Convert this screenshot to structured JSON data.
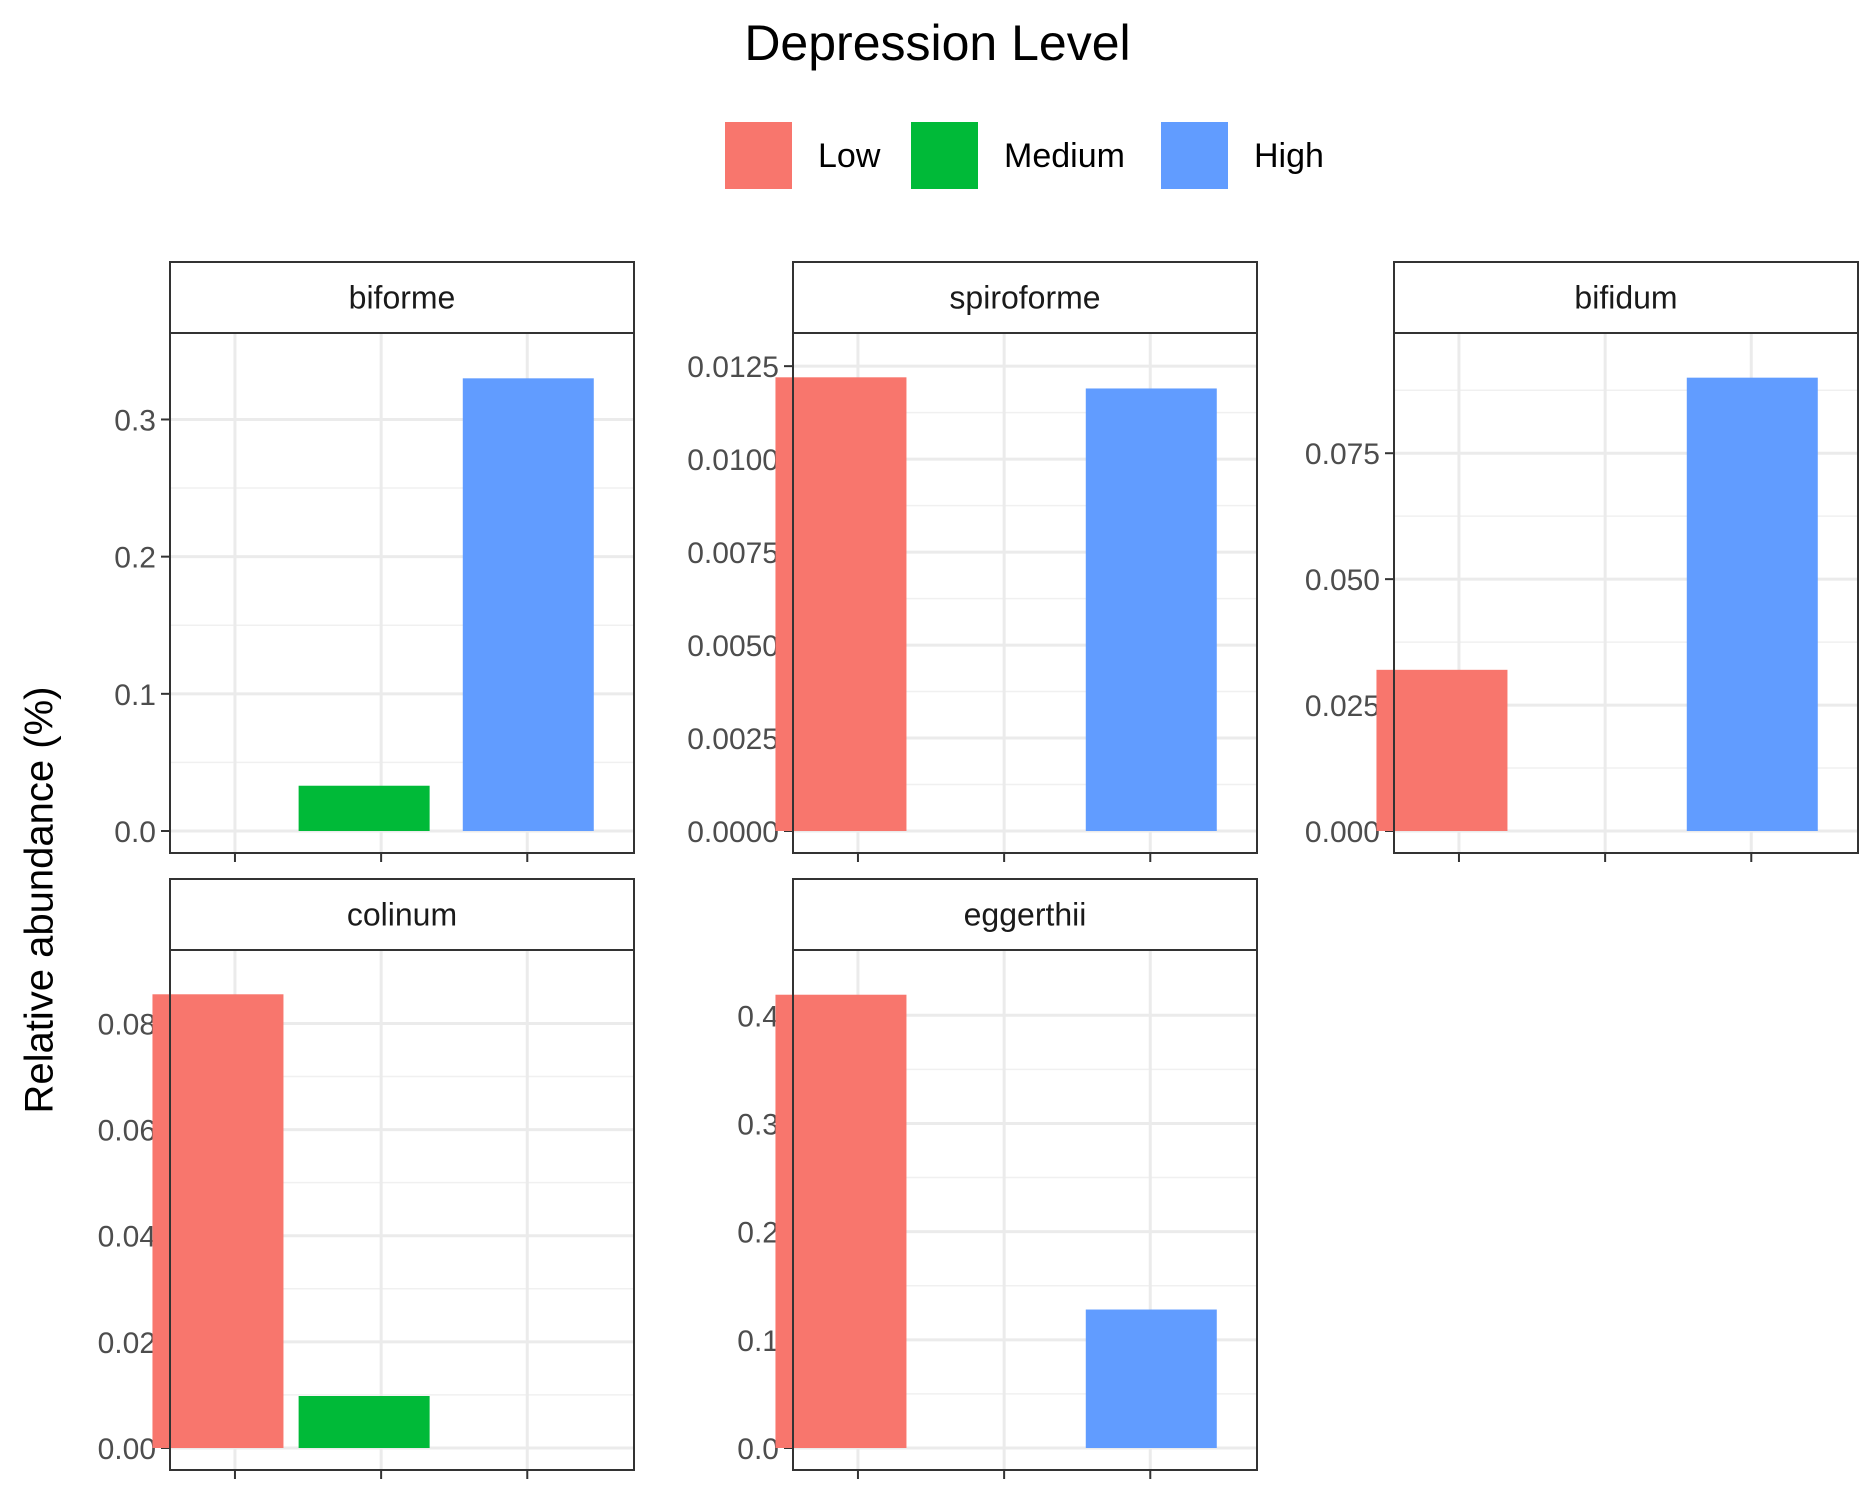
{
  "chart_data": {
    "type": "bar",
    "ylabel": "Relative abundance (%)",
    "legend": {
      "title": "Depression Level",
      "position": "top",
      "entries": [
        {
          "label": "Low",
          "color": "#F8766D"
        },
        {
          "label": "Medium",
          "color": "#00BA38"
        },
        {
          "label": "High",
          "color": "#619CFF"
        }
      ]
    },
    "categories": [
      "Low",
      "Medium",
      "High"
    ],
    "grid": true,
    "panels": [
      {
        "name": "biforme",
        "ylim": [
          0,
          0.347
        ],
        "ticks": [
          0.0,
          0.1,
          0.2,
          0.3
        ],
        "tick_labels": [
          "0.0",
          "0.1",
          "0.2",
          "0.3"
        ],
        "values": [
          null,
          0.033,
          0.33
        ]
      },
      {
        "name": "spiroforme",
        "ylim": [
          0,
          0.0128
        ],
        "ticks": [
          0,
          0.0025,
          0.005,
          0.0075,
          0.01,
          0.0125
        ],
        "tick_labels": [
          "0.0000",
          "0.0025",
          "0.0050",
          "0.0075",
          "0.0100",
          "0.0125"
        ],
        "values": [
          0.0122,
          null,
          0.0119
        ]
      },
      {
        "name": "bifidum",
        "ylim": [
          0,
          0.0945
        ],
        "ticks": [
          0,
          0.025,
          0.05,
          0.075
        ],
        "tick_labels": [
          "0.000",
          "0.025",
          "0.050",
          "0.075"
        ],
        "values": [
          0.032,
          null,
          0.09
        ]
      },
      {
        "name": "colinum",
        "ylim": [
          0,
          0.0897
        ],
        "ticks": [
          0,
          0.02,
          0.04,
          0.06,
          0.08
        ],
        "tick_labels": [
          "0.00",
          "0.02",
          "0.04",
          "0.06",
          "0.08"
        ],
        "values": [
          0.0855,
          0.0098,
          null
        ]
      },
      {
        "name": "eggerthii",
        "ylim": [
          0,
          0.44
        ],
        "ticks": [
          0,
          0.1,
          0.2,
          0.3,
          0.4
        ],
        "tick_labels": [
          "0.0",
          "0.1",
          "0.2",
          "0.3",
          "0.4"
        ],
        "values": [
          0.419,
          null,
          0.128
        ]
      }
    ]
  }
}
